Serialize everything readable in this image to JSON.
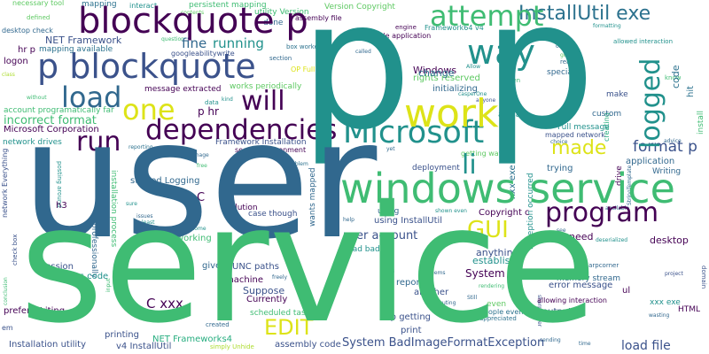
{
  "palette": {
    "purple": "#440154",
    "indigo": "#3b528b",
    "blue": "#31688e",
    "steel": "#2c728e",
    "teal": "#21918c",
    "green": "#28ae80",
    "emerald": "#3fbc73",
    "lime": "#5ec962",
    "chartreuse": "#addc30",
    "yellow": "#dde318"
  },
  "words": {
    "user": "user",
    "service": "service",
    "p_big_1": "p",
    "p_big_2": "p",
    "blockquote_p_top": "blockquote p",
    "p_blockquote": "p blockquote",
    "windows_service": "windows service",
    "work": "work",
    "dependencies": "dependencies",
    "microsoft": "Microsoft",
    "installutil_exe": "InstallUtil exe",
    "attempt": "attempt",
    "way": "way",
    "load": "load",
    "one": "one",
    "will": "will",
    "run": "run",
    "logged": "logged",
    "made": "made",
    "li": "li",
    "program": "program",
    "gui": "GUI",
    "edit": "EDIT",
    "code": "code",
    "system_badimage": "System BadImageFormatException",
    "load_file": "load file",
    "format_p": "format p",
    "user_account": "user account",
    "fine": "fine",
    "running": "running",
    "incorrect_format": "incorrect format",
    "p_hr": "p hr",
    "c_xxx": "C xxx",
    "microsoft_corporation": "Microsoft Corporation",
    "logon": "logon",
    "hr_p": "hr p",
    "net_framework": "NET Framework",
    "mapping_available": "mapping available",
    "googleabilitywrite": "googleabilitywrite",
    "account_programatically_far": "account programatically far",
    "message_extracted": "message extracted",
    "framework_installation": "Framework Installation",
    "secure_environment": "secure environment",
    "works_periodically": "works periodically",
    "network_drives": "network drives",
    "windows": "Windows",
    "rights_reserved": "rights reserved",
    "initializing": "initializing",
    "change": "change",
    "full_message": "Full message",
    "mapped_network": "mapped network",
    "getting_way": "getting way",
    "deployment": "deployment",
    "trying": "trying",
    "application": "application",
    "writing": "Writing",
    "custom": "custom",
    "make": "make",
    "actual": "actual",
    "special": "special",
    "system": "System",
    "anything": "anything",
    "establish": "establish",
    "memory_stream": "memory stream",
    "error_message": "error message",
    "need": "need",
    "desktop": "desktop",
    "starred_logging": "starred Logging",
    "c_small": "C",
    "using": "using",
    "using_installutil": "using InstallUtil",
    "copyright_c": "Copyright c",
    "xxx_exe": "xxx exe",
    "exception_occurred": "Exception occurred",
    "professionally": "professionally",
    "installation_process": "installation process",
    "h3": "h3",
    "session": "session",
    "uses_code": "uses code",
    "prototype": "prototype",
    "unc_paths": "UNC paths",
    "machine": "machine",
    "suppose": "Suppose",
    "currently": "Currently",
    "scheduled_task": "scheduled task",
    "report": "report",
    "another": "another",
    "dup_getting": "dup getting",
    "print": "print",
    "even": "even",
    "people_even": "people even",
    "allowing_interaction": "allowing interaction",
    "output": "output",
    "ul": "ul",
    "xxx_exe_2": "xxx exe",
    "html": "HTML",
    "prefer_writing": "prefer Writing",
    "installation_utility": "Installation utility",
    "v4_installutil": "v4 InstallUtil",
    "net_frameworks4": "NET Frameworks4",
    "assembly_code": "assembly code",
    "printing": "printing",
    "gives": "gives",
    "working": "working",
    "solution": "solution",
    "case_though": "case though",
    "wants_mapped": "wants mapped",
    "bad_bad": "bad bad",
    "context": "context",
    "issues": "issues",
    "least": "least",
    "sure": "sure",
    "mapping": "mapping",
    "persistent_mapping": "persistent mapping",
    "utility_version": "utility Version",
    "version_copyright": "Version Copyright",
    "assembly_file": "assembly file",
    "box_worked": "box worked",
    "console_application": "console application",
    "framework64_v4": "Framework64 v4",
    "engine": "engine",
    "done": "done",
    "desktop_check": "desktop check",
    "defined": "defined",
    "necessary_tool": "necessary tool",
    "interact": "interact",
    "contents": "contents",
    "question": "question",
    "section": "section",
    "data": "data",
    "kind": "kind",
    "called": "called",
    "allow": "Allow",
    "hidden": "hidden",
    "reading": "reading",
    "know": "know",
    "hit": "hit",
    "install": "install",
    "advice": "advice",
    "choice": "choice",
    "creating": "creating",
    "drive": "drive",
    "available": "available",
    "yet": "yet",
    "problem": "problem",
    "free": "free",
    "image": "image",
    "reporting": "reporting",
    "network_everything": "network Everything",
    "posting_around": "posting around",
    "help": "help",
    "shown_even": "shown even",
    "days": "days",
    "seems": "seems",
    "executing": "executing",
    "still": "Still",
    "sending": "sending",
    "time": "time",
    "sharpcorner": "sharpcorner",
    "project": "project",
    "wasting": "wasting",
    "domain": "domain",
    "appreciated": "appreciated",
    "created": "created",
    "though": "though",
    "dataset": "dataset",
    "conclusion": "conclusion",
    "check_box": "check box",
    "freely": "freely",
    "rendering": "rendering",
    "deserialized": "deserialized",
    "stringtemplate": "StringTemplate",
    "see": "see",
    "come": "come",
    "class": "class",
    "without": "without",
    "em": "em",
    "input": "input",
    "simply_unhide": "simply Unhide",
    "caspertone": "casperOne",
    "anyone": "anyone",
    "go": "go",
    "allowed_interaction": "allowed interaction",
    "formatting": "formatting",
    "one_small": "one",
    "op_full": "OP Full"
  }
}
